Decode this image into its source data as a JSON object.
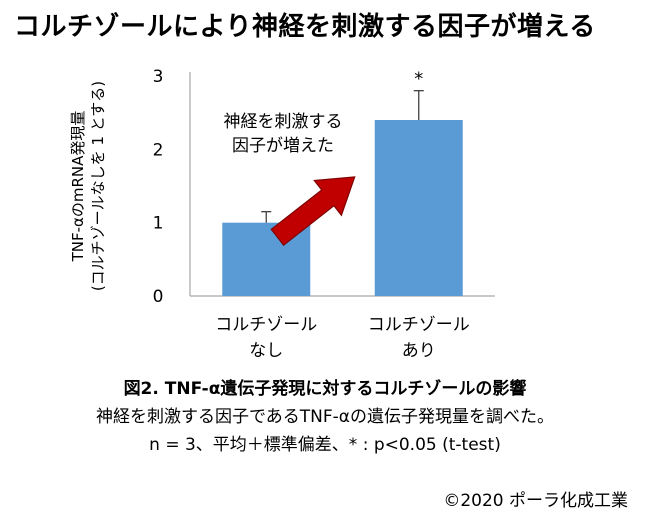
{
  "title": "コルチゾールにより神経を刺激する因子が増える",
  "caption": {
    "main": "図2.  TNF-α遺伝子発現に対するコルチゾールの影響",
    "line1": "神経を刺激する因子であるTNF-αの遺伝子発現量を調べた。",
    "line2": "n = 3、平均＋標準偏差、* : p<0.05 (t-test)"
  },
  "copyright": "©2020  ポーラ化成工業",
  "colors": {
    "bar": "#5b9bd5",
    "arrow": "#c00000",
    "arrow_edge": "#7f0000",
    "axis": "#a6a6a6"
  },
  "chart_data": {
    "type": "bar",
    "categories": [
      [
        "コルチゾール",
        "なし"
      ],
      [
        "コルチゾール",
        "あり"
      ]
    ],
    "values": [
      1.0,
      2.4
    ],
    "error": [
      0.15,
      0.4
    ],
    "significance": [
      "",
      "*"
    ],
    "ylabel_line1": "TNF-αのmRNA発現量",
    "ylabel_line2": "(コルチゾールなしを 1 とする)",
    "ylim": [
      0,
      3
    ],
    "yticks": [
      "0",
      "1",
      "2",
      "3"
    ],
    "annotation": [
      "神経を刺激する",
      "因子が増えた"
    ]
  }
}
